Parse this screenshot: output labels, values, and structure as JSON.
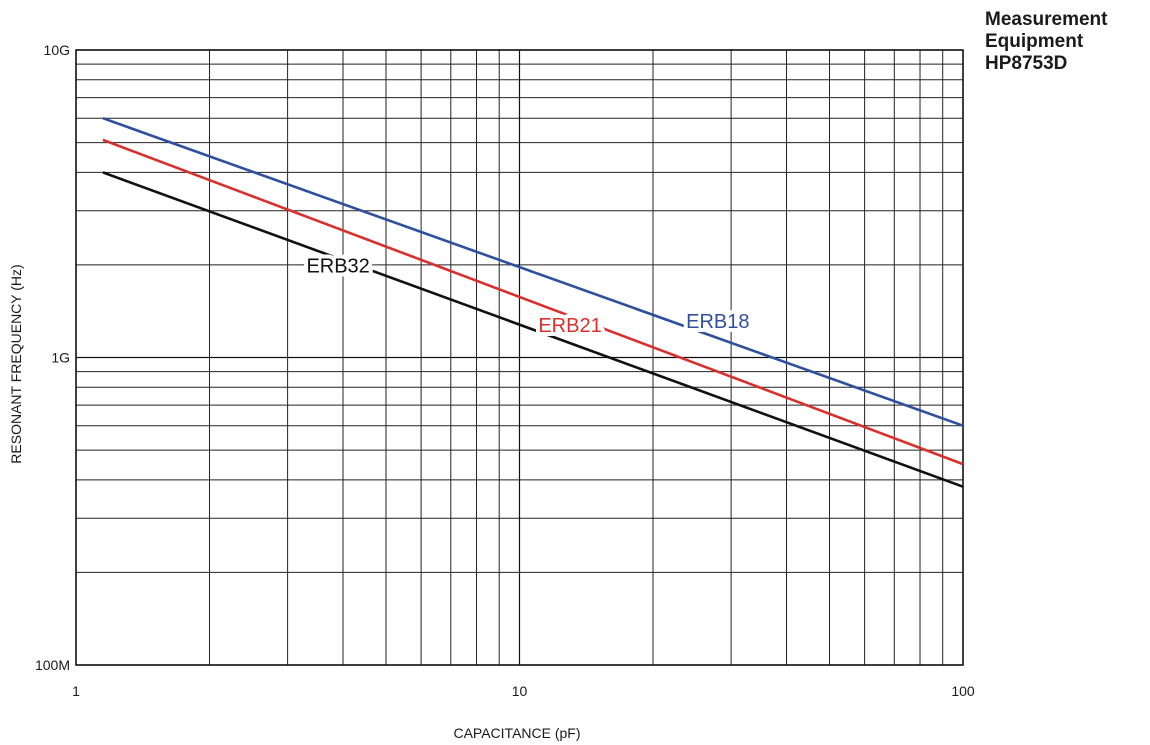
{
  "note": {
    "lines": [
      "Measurement",
      "Equipment",
      "HP8753D"
    ]
  },
  "chart_data": {
    "type": "line",
    "title": "",
    "xlabel": "CAPACITANCE (pF)",
    "ylabel": "RESONANT FREQUENCY (Hz)",
    "x_scale": "log",
    "y_scale": "log",
    "xlim": [
      1,
      100
    ],
    "ylim": [
      100000000,
      10000000000
    ],
    "grid": true,
    "x_ticks": [
      {
        "value": 1,
        "label": "1"
      },
      {
        "value": 10,
        "label": "10"
      },
      {
        "value": 100,
        "label": "100"
      }
    ],
    "y_ticks": [
      {
        "value": 100000000,
        "label": "100M"
      },
      {
        "value": 1000000000,
        "label": "1G"
      },
      {
        "value": 10000000000,
        "label": "10G"
      }
    ],
    "series": [
      {
        "name": "ERB18",
        "color": "#2f4f9f",
        "points": [
          [
            1.15,
            6000000000
          ],
          [
            100,
            600000000
          ]
        ]
      },
      {
        "name": "ERB21",
        "color": "#d9302c",
        "points": [
          [
            1.15,
            5100000000
          ],
          [
            100,
            450000000
          ]
        ]
      },
      {
        "name": "ERB32",
        "color": "#111111",
        "points": [
          [
            1.15,
            4000000000
          ],
          [
            100,
            380000000
          ]
        ]
      }
    ]
  }
}
